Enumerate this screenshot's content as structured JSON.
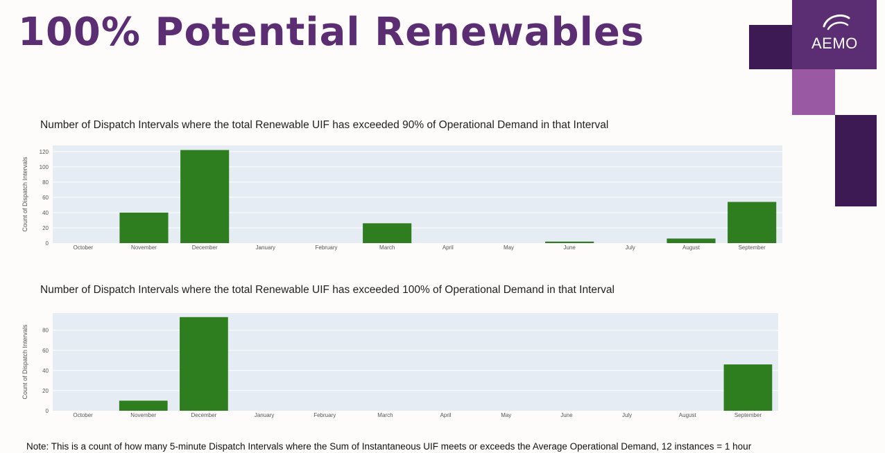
{
  "page": {
    "title": "100% Potential Renewables",
    "logo_text": "AEMO",
    "note": "Note: This is a count of how many 5-minute Dispatch Intervals where the Sum of Instantaneous UIF meets or exceeds the Average Operational Demand,  12 instances = 1 hour",
    "colors": {
      "title": "#5b2d73",
      "bar": "#2e7d1e",
      "plot_bg": "#e5ecf3",
      "logo_dark": "#3e1a55",
      "logo_mid": "#5b2d73",
      "logo_light": "#9a5aa3"
    }
  },
  "chart_data": [
    {
      "type": "bar",
      "title": "Number of Dispatch Intervals where the total Renewable UIF has exceeded 90% of Operational Demand in that Interval",
      "xlabel": "",
      "ylabel": "Count of Dispatch Intervals",
      "categories": [
        "October",
        "November",
        "December",
        "January",
        "February",
        "March",
        "April",
        "May",
        "June",
        "July",
        "August",
        "September"
      ],
      "values": [
        0,
        40,
        122,
        0,
        0,
        26,
        0,
        0,
        2,
        0,
        6,
        54
      ],
      "yticks": [
        0,
        20,
        40,
        60,
        80,
        100,
        120
      ],
      "ylim": [
        0,
        128
      ],
      "grid": true,
      "legend": "none"
    },
    {
      "type": "bar",
      "title": "Number of Dispatch Intervals where the total Renewable UIF has exceeded 100% of Operational Demand in that Interval",
      "xlabel": "",
      "ylabel": "Count of Dispatch Intervals",
      "categories": [
        "October",
        "November",
        "December",
        "January",
        "February",
        "March",
        "April",
        "May",
        "June",
        "July",
        "August",
        "September"
      ],
      "values": [
        0,
        10,
        93,
        0,
        0,
        0,
        0,
        0,
        0,
        0,
        0,
        46
      ],
      "yticks": [
        0,
        20,
        40,
        60,
        80
      ],
      "ylim": [
        0,
        97
      ],
      "grid": true,
      "legend": "none"
    }
  ]
}
